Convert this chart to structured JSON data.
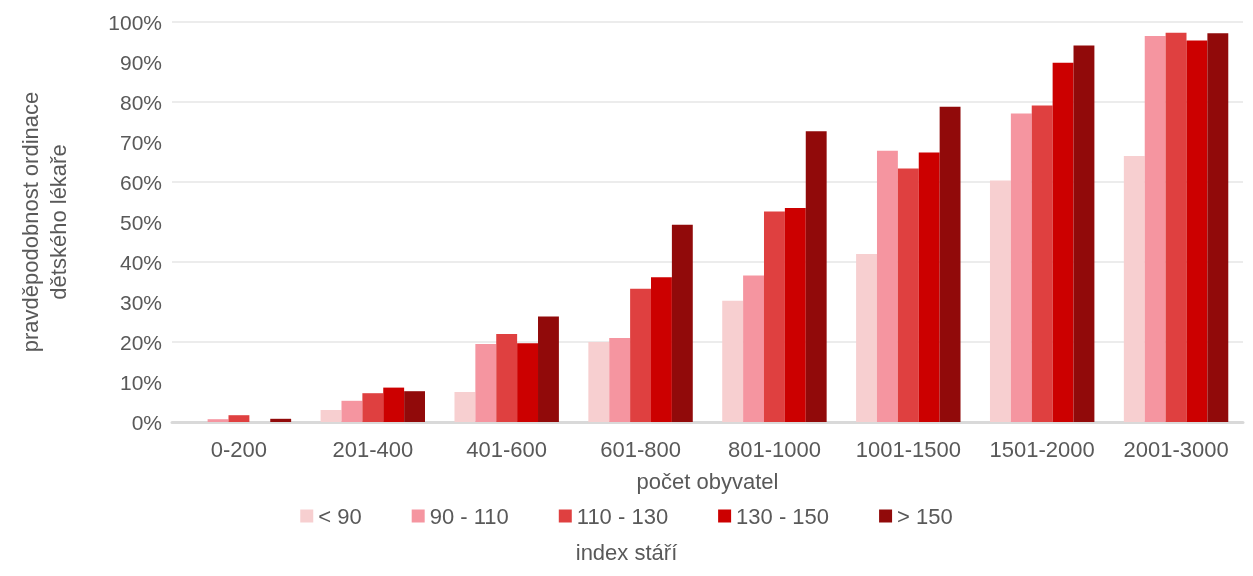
{
  "chart_data": {
    "type": "bar",
    "xlabel": "počet obyvatel",
    "ylabel": "pravděpodobnost ordinace\ndětského lékaře",
    "legend_title": "index stáří",
    "categories": [
      "0-200",
      "201-400",
      "401-600",
      "601-800",
      "801-1000",
      "1001-1500",
      "1501-2000",
      "2001-3000"
    ],
    "series": [
      {
        "name": "< 90",
        "color": "#f7cfd0",
        "values": [
          0,
          3,
          7.5,
          20,
          30.3,
          42,
          60.4,
          66.5
        ]
      },
      {
        "name": "90 - 110",
        "color": "#f595a0",
        "values": [
          0.7,
          5.3,
          19.5,
          21,
          36.6,
          67.8,
          77.1,
          96.5
        ]
      },
      {
        "name": "110 - 130",
        "color": "#df4040",
        "values": [
          1.7,
          7.2,
          22,
          33.3,
          52.6,
          63.4,
          79.1,
          97.3
        ]
      },
      {
        "name": "130 - 150",
        "color": "#cc0000",
        "values": [
          0,
          8.6,
          19.7,
          36.2,
          53.5,
          67.4,
          89.8,
          95.4
        ]
      },
      {
        "name": "> 150",
        "color": "#910a0a",
        "values": [
          0.8,
          7.7,
          26.4,
          49.3,
          72.7,
          78.8,
          94.1,
          97.2
        ]
      }
    ],
    "ylim": [
      0,
      100
    ],
    "yticks": [
      {
        "value": 0,
        "label": "0%"
      },
      {
        "value": 10,
        "label": "10%"
      },
      {
        "value": 20,
        "label": "20%"
      },
      {
        "value": 30,
        "label": "30%"
      },
      {
        "value": 40,
        "label": "40%"
      },
      {
        "value": 50,
        "label": "50%"
      },
      {
        "value": 60,
        "label": "60%"
      },
      {
        "value": 70,
        "label": "70%"
      },
      {
        "value": 80,
        "label": "80%"
      },
      {
        "value": 90,
        "label": "90%"
      },
      {
        "value": 100,
        "label": "100%"
      }
    ],
    "grid": "y",
    "legend": "bottom"
  }
}
